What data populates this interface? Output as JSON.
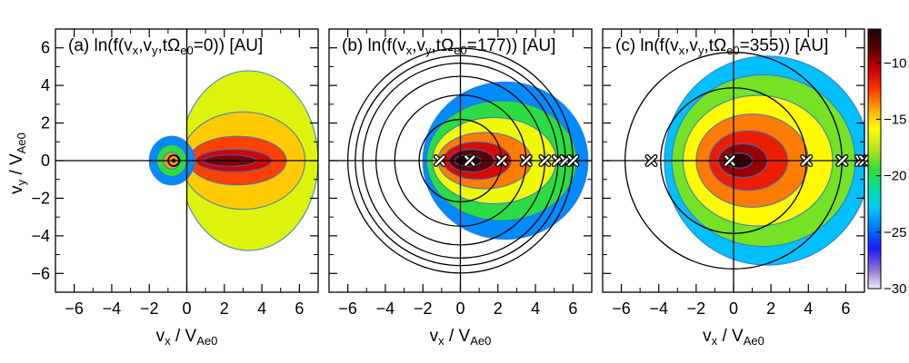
{
  "chart_data": [
    {
      "type": "heatmap",
      "panel": "a",
      "title": "(a) ln(f(v_x,v_y,tΩ_e0=0)) [AU]",
      "title_parts": {
        "prefix": "(a) ln(f(v",
        "s1": "x",
        "m1": ",v",
        "s2": "y",
        "m2": ",tΩ",
        "s3": "e0",
        "suffix": "=0)) [AU]"
      },
      "xlabel": {
        "main": "v",
        "sub1": "x",
        "sep": " / V",
        "sub2": "Ae0"
      },
      "ylabel": {
        "main": "v",
        "sub1": "y",
        "sep": " / V",
        "sub2": "Ae0"
      },
      "xlim": [
        -7,
        7
      ],
      "ylim": [
        -7,
        7
      ],
      "xticks": [
        -6,
        -4,
        -2,
        0,
        2,
        4,
        6
      ],
      "yticks": [
        -6,
        -4,
        -2,
        0,
        2,
        4,
        6
      ],
      "circles": [],
      "markers": [
        {
          "x": -0.7,
          "y": 0,
          "shape": "circle"
        }
      ]
    },
    {
      "type": "heatmap",
      "panel": "b",
      "title": "(b) ln(f(v_x,v_y,tΩ_e0=177)) [AU]",
      "title_parts": {
        "prefix": "(b) ln(f(v",
        "s1": "x",
        "m1": ",v",
        "s2": "y",
        "m2": ",tΩ",
        "s3": "e0",
        "suffix": "=177)) [AU]"
      },
      "xlabel": {
        "main": "v",
        "sub1": "x",
        "sep": " / V",
        "sub2": "Ae0"
      },
      "xlim": [
        -7,
        7
      ],
      "ylim": [
        -7,
        7
      ],
      "xticks": [
        -6,
        -4,
        -2,
        0,
        2,
        4,
        6
      ],
      "circles": [
        {
          "cx": 0,
          "cy": 0,
          "r": 2.2
        },
        {
          "cx": 0,
          "cy": 0,
          "r": 3.5
        },
        {
          "cx": 0,
          "cy": 0,
          "r": 4.5
        },
        {
          "cx": 0,
          "cy": 0,
          "r": 5.2
        },
        {
          "cx": 0,
          "cy": 0,
          "r": 5.6
        },
        {
          "cx": 0,
          "cy": 0,
          "r": 6.0
        }
      ],
      "markers": [
        {
          "x": -1.1,
          "y": 0,
          "shape": "x"
        },
        {
          "x": 0.5,
          "y": 0,
          "shape": "x"
        },
        {
          "x": 2.2,
          "y": 0,
          "shape": "x"
        },
        {
          "x": 3.5,
          "y": 0,
          "shape": "x"
        },
        {
          "x": 4.5,
          "y": 0,
          "shape": "x"
        },
        {
          "x": 5.2,
          "y": 0,
          "shape": "x"
        },
        {
          "x": 5.6,
          "y": 0,
          "shape": "x"
        },
        {
          "x": 6.0,
          "y": 0,
          "shape": "x"
        }
      ]
    },
    {
      "type": "heatmap",
      "panel": "c",
      "title": "(c) ln(f(v_x,v_y,tΩ_e0=355)) [AU]",
      "title_parts": {
        "prefix": "(c) ln(f(v",
        "s1": "x",
        "m1": ",v",
        "s2": "y",
        "m2": ",tΩ",
        "s3": "e0",
        "suffix": "=355)) [AU]"
      },
      "xlabel": {
        "main": "v",
        "sub1": "x",
        "sep": " / V",
        "sub2": "Ae0"
      },
      "xlim": [
        -7,
        7
      ],
      "ylim": [
        -7,
        7
      ],
      "xticks": [
        -6,
        -4,
        -2,
        0,
        2,
        4,
        6
      ],
      "circles": [
        {
          "cx": 0,
          "cy": 0,
          "r": 3.9
        },
        {
          "cx": 0,
          "cy": 0,
          "r": 5.8
        }
      ],
      "markers": [
        {
          "x": -4.4,
          "y": 0,
          "shape": "x"
        },
        {
          "x": -0.2,
          "y": 0,
          "shape": "x"
        },
        {
          "x": 3.9,
          "y": 0,
          "shape": "x"
        },
        {
          "x": 5.8,
          "y": 0,
          "shape": "x"
        },
        {
          "x": 6.8,
          "y": 0,
          "shape": "x"
        },
        {
          "x": 7.0,
          "y": 0,
          "shape": "x"
        }
      ]
    }
  ],
  "colorbar": {
    "min": -30,
    "max": -7,
    "ticks": [
      -10,
      -15,
      -20,
      -25,
      -30
    ],
    "stops": [
      "#f0eef8",
      "#8c6bd6",
      "#1a1aff",
      "#0077ff",
      "#00c8ff",
      "#00e0a0",
      "#33dd33",
      "#b6e619",
      "#ffff00",
      "#ffa500",
      "#ff3300",
      "#cc0000",
      "#5a0000",
      "#200000"
    ]
  }
}
